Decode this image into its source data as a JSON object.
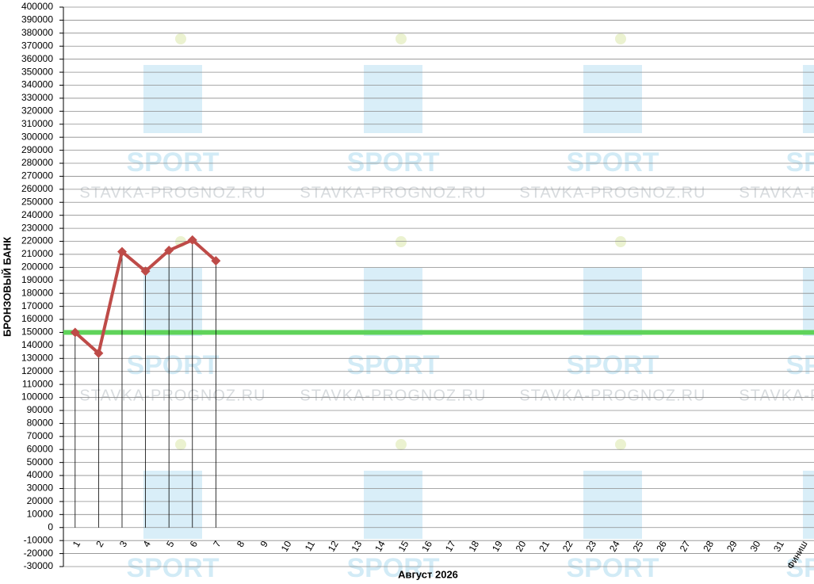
{
  "chart_data": {
    "type": "line",
    "watermark": {
      "title": "SPORT",
      "site": "STAVKA-PROGNOZ.RU"
    },
    "x_label": "Август 2026",
    "y_label": "БРОНЗОВЫЙ БАНК",
    "categories": [
      "1",
      "2",
      "3",
      "4",
      "5",
      "6",
      "7",
      "8",
      "9",
      "10",
      "11",
      "12",
      "13",
      "14",
      "15",
      "16",
      "17",
      "18",
      "19",
      "20",
      "21",
      "22",
      "23",
      "24",
      "25",
      "26",
      "27",
      "28",
      "29",
      "30",
      "31",
      "Финиш"
    ],
    "series": [
      {
        "color": "#be4b48",
        "drop_lines": true,
        "values": [
          150000,
          134000,
          212000,
          197000,
          213000,
          221000,
          205000,
          null,
          null,
          null,
          null,
          null,
          null,
          null,
          null,
          null,
          null,
          null,
          null,
          null,
          null,
          null,
          null,
          null,
          null,
          null,
          null,
          null,
          null,
          null,
          null,
          null
        ]
      }
    ],
    "reference_line": {
      "value": 150000,
      "color": "#5fd35a"
    },
    "ylim": [
      -30000,
      400000
    ],
    "yticks": [
      -30000,
      -20000,
      -10000,
      0,
      10000,
      20000,
      30000,
      40000,
      50000,
      60000,
      70000,
      80000,
      90000,
      100000,
      110000,
      120000,
      130000,
      140000,
      150000,
      160000,
      170000,
      180000,
      190000,
      200000,
      210000,
      220000,
      230000,
      240000,
      250000,
      260000,
      270000,
      280000,
      290000,
      300000,
      310000,
      320000,
      330000,
      340000,
      350000,
      360000,
      370000,
      380000,
      390000,
      400000
    ],
    "grid": true
  }
}
